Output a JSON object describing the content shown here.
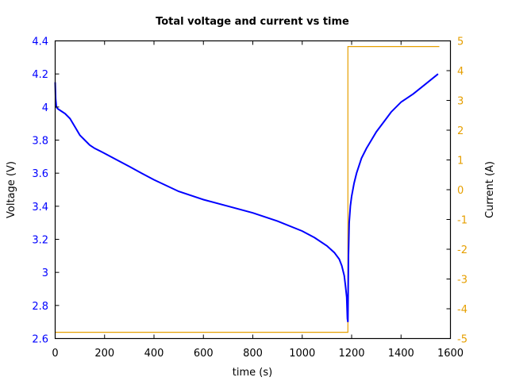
{
  "chart_data": {
    "type": "line",
    "title": "Total voltage and current vs time",
    "xlabel": "time (s)",
    "ylabel": "Voltage (V)",
    "y2label": "Current (A)",
    "xlim": [
      0,
      1600
    ],
    "ylim": [
      2.6,
      4.4
    ],
    "y2lim": [
      -5,
      5
    ],
    "xticks": [
      "0",
      "200",
      "400",
      "600",
      "800",
      "1000",
      "1200",
      "1400",
      "1600"
    ],
    "yticks": [
      "2.6",
      "2.8",
      "3",
      "3.2",
      "3.4",
      "3.6",
      "3.8",
      "4",
      "4.2",
      "4.4"
    ],
    "y2ticks": [
      "-5",
      "-4",
      "-3",
      "-2",
      "-1",
      "0",
      "1",
      "2",
      "3",
      "4",
      "5"
    ],
    "grid": false,
    "legend": null,
    "colors": {
      "voltage": "#0000ff",
      "current": "#e69f00",
      "axes": "#000000"
    },
    "series": [
      {
        "name": "Voltage (V)",
        "axis": "left",
        "x": [
          0,
          2,
          5,
          10,
          20,
          40,
          60,
          80,
          100,
          120,
          140,
          160,
          200,
          250,
          300,
          350,
          400,
          500,
          600,
          700,
          800,
          900,
          1000,
          1050,
          1100,
          1130,
          1150,
          1160,
          1170,
          1175,
          1180,
          1183,
          1185,
          1187,
          1190,
          1195,
          1200,
          1210,
          1220,
          1240,
          1260,
          1280,
          1300,
          1330,
          1360,
          1400,
          1450,
          1500,
          1550
        ],
        "y": [
          4.15,
          4.05,
          4.0,
          3.99,
          3.98,
          3.96,
          3.93,
          3.88,
          3.83,
          3.8,
          3.77,
          3.75,
          3.72,
          3.68,
          3.64,
          3.6,
          3.56,
          3.49,
          3.44,
          3.4,
          3.36,
          3.31,
          3.25,
          3.21,
          3.16,
          3.12,
          3.08,
          3.04,
          2.98,
          2.92,
          2.85,
          2.72,
          2.7,
          3.1,
          3.3,
          3.4,
          3.46,
          3.54,
          3.6,
          3.69,
          3.75,
          3.8,
          3.85,
          3.91,
          3.97,
          4.03,
          4.08,
          4.14,
          4.2
        ]
      },
      {
        "name": "Current (A)",
        "axis": "right",
        "x": [
          0,
          1185,
          1185,
          1555
        ],
        "y": [
          -4.79,
          -4.79,
          4.81,
          4.81
        ]
      }
    ]
  }
}
